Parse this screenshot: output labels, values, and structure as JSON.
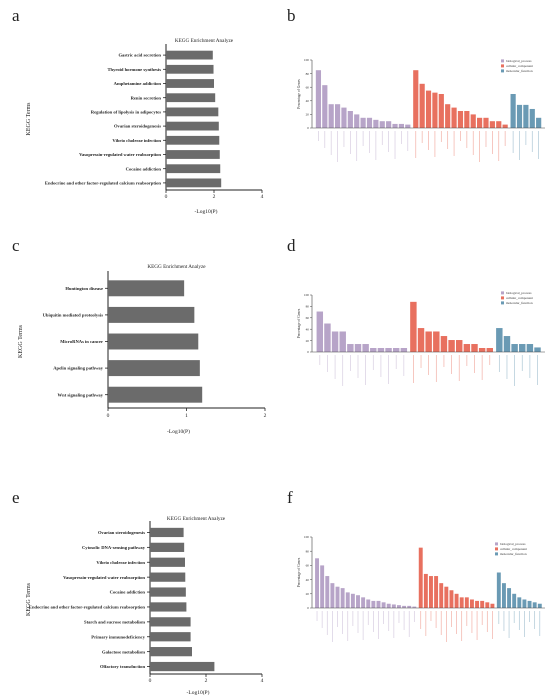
{
  "panel_letters": {
    "a": "a",
    "b": "b",
    "c": "c",
    "d": "d",
    "e": "e",
    "f": "f"
  },
  "colors": {
    "kegg_bar": "#6b6b6b",
    "biological_process": "#b7a4c8",
    "cellular_component": "#e8705f",
    "molecular_function": "#6a9ab4"
  },
  "chart_data": [
    {
      "panel": "a",
      "type": "bar",
      "orientation": "horizontal",
      "title": "KEGG Enrichment Analyze",
      "xlabel": "-Log10(P)",
      "ylabel": "KEGG Terms",
      "xlim": [
        0,
        4
      ],
      "xticks": [
        "0",
        "2",
        "4"
      ],
      "categories": [
        "Gastric acid secretion",
        "Thyroid hormone synthesis",
        "Amphetamine addiction",
        "Renin secretion",
        "Regulation of lipolysis in adipocytes",
        "Ovarian steroidogenesis",
        "Vibrio cholerae infection",
        "Vasopressin-regulated water reabsorption",
        "Cocaine addiction",
        "Endocrine and other factor-regulated calcium reabsorption"
      ],
      "values": [
        1.95,
        1.98,
        2.0,
        2.05,
        2.18,
        2.2,
        2.22,
        2.24,
        2.26,
        2.3
      ]
    },
    {
      "panel": "b",
      "type": "bar",
      "ylabel": "Percentage of Genes",
      "ylim": [
        0,
        100
      ],
      "yticks": [
        "0",
        "20",
        "40",
        "60",
        "80",
        "100"
      ],
      "legend": [
        "biological_process",
        "cellular_component",
        "molecular_function"
      ],
      "legend_position": "top-right",
      "groups": [
        {
          "name": "biological_process",
          "values": [
            85,
            63,
            35,
            35,
            30,
            25,
            20,
            15,
            15,
            12,
            10,
            10,
            6,
            6,
            5
          ]
        },
        {
          "name": "cellular_component",
          "values": [
            85,
            65,
            55,
            52,
            50,
            35,
            30,
            25,
            25,
            20,
            15,
            15,
            10,
            10,
            5
          ]
        },
        {
          "name": "molecular_function",
          "values": [
            50,
            34,
            34,
            28,
            15
          ]
        }
      ]
    },
    {
      "panel": "c",
      "type": "bar",
      "orientation": "horizontal",
      "title": "KEGG Enrichment Analyze",
      "xlabel": "-Log10(P)",
      "ylabel": "KEGG Terms",
      "xlim": [
        0,
        2
      ],
      "xticks": [
        "0",
        "1",
        "2"
      ],
      "categories": [
        "Huntington disease",
        "Ubiquitin mediated proteolysis",
        "MicroRNAs in cancer",
        "Apelin signaling pathway",
        "Wnt signaling pathway"
      ],
      "values": [
        0.97,
        1.1,
        1.15,
        1.17,
        1.2
      ]
    },
    {
      "panel": "d",
      "type": "bar",
      "ylabel": "Percentage of Genes",
      "ylim": [
        0,
        100
      ],
      "yticks": [
        "0",
        "20",
        "40",
        "60",
        "80",
        "100"
      ],
      "legend": [
        "biological_process",
        "cellular_component",
        "molecular_function"
      ],
      "legend_position": "top-right",
      "groups": [
        {
          "name": "biological_process",
          "values": [
            71,
            50,
            36,
            36,
            14,
            14,
            14,
            7,
            7,
            7,
            7,
            7
          ]
        },
        {
          "name": "cellular_component",
          "values": [
            88,
            42,
            36,
            36,
            28,
            21,
            21,
            14,
            14,
            7,
            7
          ]
        },
        {
          "name": "molecular_function",
          "values": [
            42,
            28,
            14,
            14,
            14,
            8
          ]
        }
      ]
    },
    {
      "panel": "e",
      "type": "bar",
      "orientation": "horizontal",
      "title": "KEGG Enrichment Analyze",
      "xlabel": "-Log10(P)",
      "ylabel": "KEGG Terms",
      "xlim": [
        0,
        4
      ],
      "xticks": [
        "0",
        "2",
        "4"
      ],
      "categories": [
        "Ovarian steroidogenesis",
        "Cytosolic DNA-sensing pathway",
        "Vibrio cholerae infection",
        "Vasopressin-regulated water reabsorption",
        "Cocaine addiction",
        "Endocrine and other factor-regulated calcium reabsorption",
        "Starch and sucrose metabolism",
        "Primary immunodeficiency",
        "Galactose metabolism",
        "Olfactory transduction"
      ],
      "values": [
        1.2,
        1.22,
        1.25,
        1.26,
        1.28,
        1.3,
        1.45,
        1.45,
        1.5,
        2.3
      ]
    },
    {
      "panel": "f",
      "type": "bar",
      "ylabel": "Percentage of Genes",
      "ylim": [
        0,
        100
      ],
      "yticks": [
        "0",
        "20",
        "40",
        "60",
        "80",
        "100"
      ],
      "legend": [
        "biological_process",
        "cellular_component",
        "molecular_function"
      ],
      "legend_position": "top-right",
      "groups": [
        {
          "name": "biological_process",
          "values": [
            70,
            60,
            45,
            35,
            30,
            28,
            22,
            20,
            18,
            15,
            12,
            10,
            10,
            8,
            6,
            5,
            4,
            3,
            3,
            2
          ]
        },
        {
          "name": "cellular_component",
          "values": [
            85,
            48,
            45,
            45,
            35,
            30,
            25,
            20,
            15,
            15,
            12,
            10,
            10,
            8,
            6
          ]
        },
        {
          "name": "molecular_function",
          "values": [
            50,
            35,
            28,
            20,
            15,
            12,
            10,
            8,
            6
          ]
        }
      ]
    }
  ]
}
